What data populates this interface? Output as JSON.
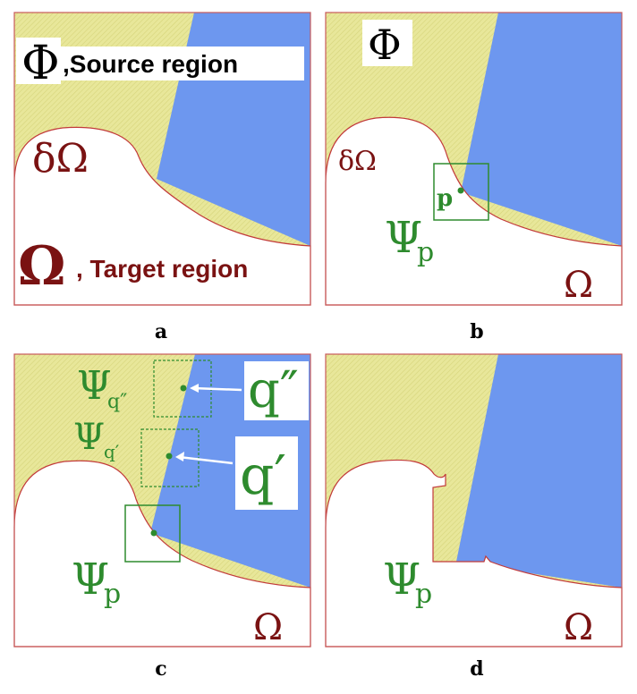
{
  "colors": {
    "source_fill": "#e8e79a",
    "source_hatch": "#d9d77a",
    "target_fill": "#ffffff",
    "boundary": "#c23a3a",
    "blue_region": "#6d97ef",
    "green": "#2e8b2e",
    "dark_red": "#7a1212",
    "border": "#c75a5a"
  },
  "panels": {
    "a": {
      "caption": "a",
      "phi_symbol": "Φ",
      "source_label": ",Source region",
      "delta_omega": "δΩ",
      "omega_symbol": "Ω",
      "target_label": ", Target region"
    },
    "b": {
      "caption": "b",
      "phi_symbol": "Φ",
      "delta_omega": "δΩ",
      "p_label": "p",
      "psi_symbol": "Ψ",
      "psi_sub": "p",
      "omega_symbol": "Ω"
    },
    "c": {
      "caption": "c",
      "psi_symbol": "Ψ",
      "psi_q2_sub": "q″",
      "psi_q1_sub": "q′",
      "psi_p_sub": "p",
      "q2_label": "q″",
      "q1_label": "q′",
      "omega_symbol": "Ω"
    },
    "d": {
      "caption": "d",
      "psi_symbol": "Ψ",
      "psi_sub": "p",
      "omega_symbol": "Ω"
    }
  }
}
